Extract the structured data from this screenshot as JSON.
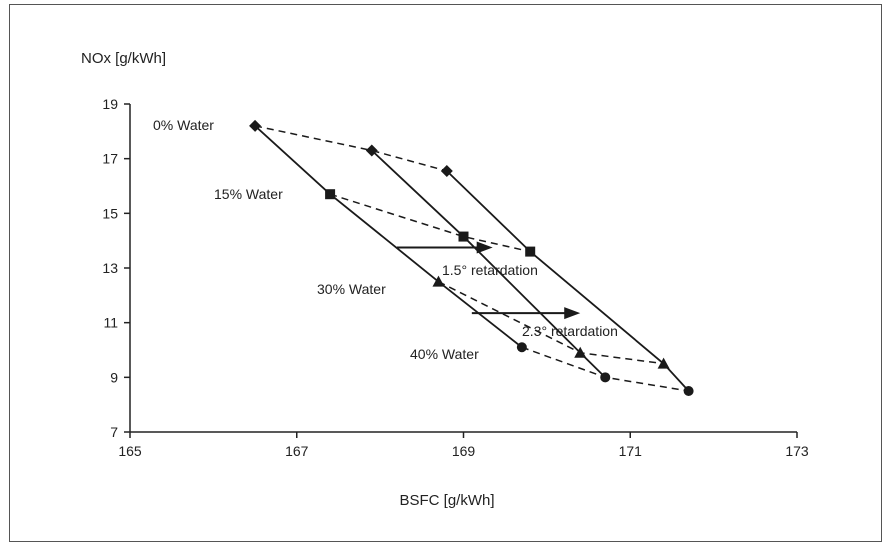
{
  "chart_data": {
    "type": "line",
    "xlabel": "BSFC [g/kWh]",
    "ylabel": "NOx [g/kWh]",
    "xlim": [
      165,
      173
    ],
    "ylim": [
      7,
      19
    ],
    "xticks": [
      "165",
      "167",
      "169",
      "171",
      "173"
    ],
    "yticks": [
      "7",
      "9",
      "11",
      "13",
      "15",
      "17",
      "19"
    ],
    "grid": false,
    "points": {
      "t0_0": [
        166.5,
        18.2
      ],
      "t0_15": [
        167.4,
        15.7
      ],
      "t0_30": [
        168.7,
        12.5
      ],
      "t0_40": [
        169.7,
        10.1
      ],
      "t15_0": [
        167.9,
        17.3
      ],
      "t15_15": [
        169.0,
        14.15
      ],
      "t15_30": [
        170.4,
        9.9
      ],
      "t15_40": [
        170.7,
        9.0
      ],
      "t23_0": [
        168.8,
        16.55
      ],
      "t23_15": [
        169.8,
        13.6
      ],
      "t23_30": [
        171.4,
        9.5
      ],
      "t23_40": [
        171.7,
        8.5
      ]
    },
    "timing_lines": [
      {
        "timing": "0",
        "points": [
          "t0_0",
          "t0_15",
          "t0_30",
          "t0_40"
        ]
      },
      {
        "timing": "1.5",
        "points": [
          "t15_0",
          "t15_15",
          "t15_30",
          "t15_40"
        ]
      },
      {
        "timing": "2.3",
        "points": [
          "t23_0",
          "t23_15",
          "t23_30",
          "t23_40"
        ]
      }
    ],
    "water_lines": [
      {
        "label": "0% Water",
        "marker": "diamond",
        "points": [
          "t0_0",
          "t15_0",
          "t23_0"
        ]
      },
      {
        "label": "15% Water",
        "marker": "square",
        "points": [
          "t0_15",
          "t15_15",
          "t23_15"
        ]
      },
      {
        "label": "30% Water",
        "marker": "triangle",
        "points": [
          "t0_30",
          "t15_30",
          "t23_30"
        ]
      },
      {
        "label": "40% Water",
        "marker": "circle",
        "points": [
          "t0_40",
          "t15_40",
          "t23_40"
        ]
      }
    ],
    "arrows": [
      {
        "from": [
          168.2,
          13.75
        ],
        "to": [
          169.35,
          13.75
        ],
        "label": "1.5° retardation"
      },
      {
        "from": [
          169.1,
          11.35
        ],
        "to": [
          170.4,
          11.35
        ],
        "label": "2.3° retardation"
      }
    ]
  },
  "labels": {
    "water_0": "0% Water",
    "water_15": "15% Water",
    "water_30": "30% Water",
    "water_40": "40% Water",
    "retard_15": "1.5° retardation",
    "retard_23": "2.3° retardation"
  },
  "colors": {
    "ink": "#1a1a1a",
    "axis": "#222222"
  }
}
